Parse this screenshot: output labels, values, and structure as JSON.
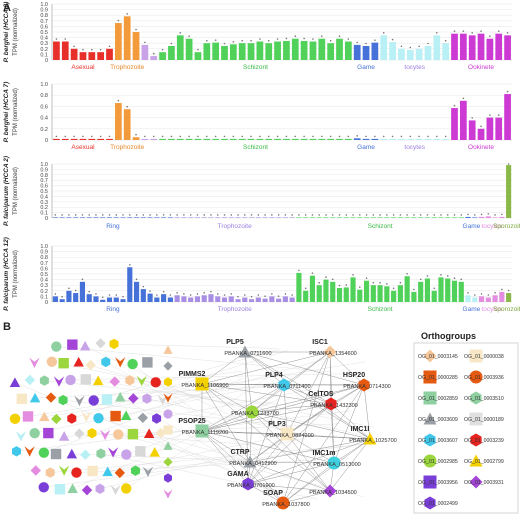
{
  "panel_labels": [
    "A",
    "B"
  ],
  "chart_data": [
    {
      "type": "bar",
      "title": "",
      "ylabel_line1": "P. berghei (HCCA 2)",
      "ylabel_line2": "TPM (normalized)",
      "ylim": [
        0,
        1.0
      ],
      "yticks": [
        "0",
        "0.1",
        "0.2",
        "0.3",
        "0.4",
        "0.5",
        "0.6",
        "0.7",
        "0.8",
        "0.9",
        "1.0"
      ],
      "groups": [
        {
          "name": "Asexual",
          "color": "#e8302a",
          "values": [
            0.33,
            0.33,
            0.2,
            0.14,
            0.14,
            0.14,
            0.2
          ]
        },
        {
          "name": "Trophozoite",
          "color": "#f39a3b",
          "values": [
            0.66,
            0.78,
            0.5
          ]
        },
        {
          "name": "",
          "color": "#c9a3e8",
          "values": [
            0.27,
            0.07
          ]
        },
        {
          "name": "Schizont",
          "color": "#4fd15a",
          "values": [
            0.14,
            0.25,
            0.44,
            0.38,
            0.14,
            0.3,
            0.31,
            0.25,
            0.28,
            0.3,
            0.3,
            0.33,
            0.3,
            0.33,
            0.34,
            0.38,
            0.34,
            0.33,
            0.38,
            0.3,
            0.38,
            0.33
          ]
        },
        {
          "name": "Game",
          "color": "#4671d8",
          "values": [
            0.27,
            0.25,
            0.31
          ]
        },
        {
          "name": "tocytes",
          "color": "#b8f0f5",
          "values": [
            0.44,
            0.32,
            0.2,
            0.18,
            0.2,
            0.25,
            0.44,
            0.3
          ]
        },
        {
          "name": "Ookinete",
          "color": "#cc3ad3",
          "values": [
            0.47,
            0.47,
            0.44,
            0.47,
            0.38,
            0.47,
            0.44
          ]
        }
      ],
      "x_group_labels": [
        {
          "text": "Asexual",
          "color": "#e8302a"
        },
        {
          "text": "Trophozoite",
          "color": "#e68a2e"
        },
        {
          "text": "Schizont",
          "color": "#38b944"
        },
        {
          "text": "Game",
          "color": "#4671d8"
        },
        {
          "text": "tocytes",
          "color": "#9b7fe0"
        },
        {
          "text": "Ookinete",
          "color": "#cc3ad3"
        }
      ]
    },
    {
      "type": "bar",
      "title": "",
      "ylabel_line1": "P. berghei (HCCA 7)",
      "ylabel_line2": "TPM (normalized)",
      "ylim": [
        0,
        1.0
      ],
      "yticks": [
        "0",
        "0.2",
        "0.4",
        "0.6",
        "0.8",
        "1.0"
      ],
      "groups": [
        {
          "name": "Asexual",
          "color": "#e8302a",
          "values": [
            0.02,
            0.02,
            0.02,
            0.02,
            0.02,
            0.02,
            0.02
          ]
        },
        {
          "name": "Trophozoite",
          "color": "#f39a3b",
          "values": [
            0.66,
            0.55,
            0.05
          ]
        },
        {
          "name": "",
          "color": "#c9a3e8",
          "values": [
            0.02,
            0.02
          ]
        },
        {
          "name": "Schizont",
          "color": "#4fd15a",
          "values": [
            0.02,
            0.02,
            0.02,
            0.02,
            0.02,
            0.02,
            0.02,
            0.02,
            0.02,
            0.02,
            0.02,
            0.02,
            0.02,
            0.02,
            0.02,
            0.02,
            0.02,
            0.02,
            0.02,
            0.02,
            0.02,
            0.02
          ]
        },
        {
          "name": "Game",
          "color": "#4671d8",
          "values": [
            0.03,
            0.02,
            0.02
          ]
        },
        {
          "name": "tocytes",
          "color": "#b8f0f5",
          "values": [
            0.02,
            0.02,
            0.02,
            0.02,
            0.02,
            0.02,
            0.02,
            0.02
          ]
        },
        {
          "name": "Ookinete",
          "color": "#cc3ad3",
          "values": [
            0.57,
            0.7,
            0.35,
            0.2,
            0.4,
            0.4,
            0.82
          ]
        }
      ],
      "x_group_labels": [
        {
          "text": "Asexual",
          "color": "#e8302a"
        },
        {
          "text": "Trophozoite",
          "color": "#e68a2e"
        },
        {
          "text": "Schizont",
          "color": "#38b944"
        },
        {
          "text": "Game",
          "color": "#4671d8"
        },
        {
          "text": "tocytes",
          "color": "#9b7fe0"
        },
        {
          "text": "Ookinete",
          "color": "#cc3ad3"
        }
      ]
    },
    {
      "type": "bar",
      "title": "",
      "ylabel_line1": "P. falciparum (HCCA 2)",
      "ylabel_line2": "TPM (normalized)",
      "ylim": [
        0,
        1.0
      ],
      "yticks": [
        "0",
        "0.1",
        "0.2",
        "0.3",
        "0.4",
        "0.5",
        "0.6",
        "0.7",
        "0.8",
        "0.9",
        "1.0"
      ],
      "groups": [
        {
          "name": "Ring",
          "color": "#4671d8",
          "values": [
            0.01,
            0.01,
            0.01,
            0.01,
            0.01,
            0.01,
            0.01,
            0.01,
            0.01,
            0.01,
            0.01,
            0.01,
            0.01,
            0.01,
            0.01,
            0.01,
            0.01,
            0.01
          ]
        },
        {
          "name": "Trophozoite",
          "color": "#a98fe3",
          "values": [
            0.01,
            0.01,
            0.01,
            0.01,
            0.01,
            0.01,
            0.01,
            0.01,
            0.01,
            0.01,
            0.01,
            0.01,
            0.01,
            0.01,
            0.01,
            0.01,
            0.01,
            0.01
          ]
        },
        {
          "name": "Schizont",
          "color": "#4fd15a",
          "values": [
            0.01,
            0.01,
            0.01,
            0.01,
            0.01,
            0.01,
            0.01,
            0.01,
            0.01,
            0.01,
            0.01,
            0.01,
            0.01,
            0.01,
            0.01,
            0.01,
            0.01,
            0.01,
            0.01,
            0.01,
            0.01,
            0.01,
            0.01,
            0.01,
            0.01
          ]
        },
        {
          "name": "Game",
          "color": "#4671d8",
          "values": [
            0.02,
            0.01
          ]
        },
        {
          "name": "tocytes",
          "color": "#e48ce0",
          "values": [
            0.02,
            0.03,
            0.01,
            0.02
          ]
        },
        {
          "name": "Sporozoite",
          "color": "#8ab94a",
          "values": [
            0.98
          ]
        }
      ],
      "x_group_labels": [
        {
          "text": "Ring",
          "color": "#4671d8"
        },
        {
          "text": "Trophozoite",
          "color": "#9b7fe0"
        },
        {
          "text": "Schizont",
          "color": "#38b944"
        },
        {
          "text": "Game",
          "color": "#4671d8"
        },
        {
          "text": "tocytes",
          "color": "#e48ce0"
        },
        {
          "text": "Sporozoite",
          "color": "#7da83c"
        }
      ]
    },
    {
      "type": "bar",
      "title": "",
      "ylabel_line1": "P. falciparum (HCCA 12)",
      "ylabel_line2": "TPM (normalized)",
      "ylim": [
        0,
        1.0
      ],
      "yticks": [
        "0",
        "0.1",
        "0.2",
        "0.3",
        "0.4",
        "0.5",
        "0.6",
        "0.7",
        "0.8",
        "0.9",
        "1.0"
      ],
      "groups": [
        {
          "name": "Ring",
          "color": "#4671d8",
          "values": [
            0.1,
            0.05,
            0.2,
            0.16,
            0.36,
            0.14,
            0.1,
            0.04,
            0.08,
            0.08,
            0.05,
            0.62,
            0.36,
            0.23,
            0.15,
            0.08,
            0.14,
            0.08
          ]
        },
        {
          "name": "Trophozoite",
          "color": "#a98fe3",
          "values": [
            0.12,
            0.1,
            0.08,
            0.1,
            0.12,
            0.14,
            0.1,
            0.08,
            0.1,
            0.05,
            0.08,
            0.05,
            0.08,
            0.06,
            0.1,
            0.06,
            0.1,
            0.08
          ]
        },
        {
          "name": "Schizont",
          "color": "#4fd15a",
          "values": [
            0.52,
            0.2,
            0.47,
            0.3,
            0.4,
            0.36,
            0.25,
            0.26,
            0.44,
            0.22,
            0.38,
            0.3,
            0.3,
            0.28,
            0.2,
            0.3,
            0.46,
            0.18,
            0.36,
            0.42,
            0.2,
            0.44,
            0.42,
            0.38,
            0.36
          ]
        },
        {
          "name": "Game",
          "color": "#b8f0f5",
          "values": [
            0.12,
            0.08
          ]
        },
        {
          "name": "tocytes",
          "color": "#e48ce0",
          "values": [
            0.1,
            0.08,
            0.12,
            0.18
          ]
        },
        {
          "name": "Sporozoite",
          "color": "#8ab94a",
          "values": [
            0.16
          ]
        }
      ],
      "x_group_labels": [
        {
          "text": "Ring",
          "color": "#4671d8"
        },
        {
          "text": "Trophozoite",
          "color": "#9b7fe0"
        },
        {
          "text": "Schizont",
          "color": "#38b944"
        },
        {
          "text": "Game",
          "color": "#4671d8"
        },
        {
          "text": "tocytes",
          "color": "#e48ce0"
        },
        {
          "text": "Sporozoite",
          "color": "#7da83c"
        }
      ]
    }
  ],
  "network": {
    "highlight_nodes": [
      {
        "name": "PLP5",
        "id": "PBANKA_0711600",
        "color": "#9aa0a6",
        "shape": "triangle"
      },
      {
        "name": "ISC1",
        "id": "PBANKA_1354600",
        "color": "#f6c79a",
        "shape": "diamond"
      },
      {
        "name": "PIMMS2",
        "id": "PBANKA_1106900",
        "color": "#f3d000",
        "shape": "square"
      },
      {
        "name": "PLP4",
        "id": "PBANKA_0711400",
        "color": "#40c8ea",
        "shape": "hexagon"
      },
      {
        "name": "HSP20",
        "id": "PBANKA_0714300",
        "color": "#e55a10",
        "shape": "hexagon"
      },
      {
        "name": "",
        "id": "PBANKA_1233700",
        "color": "#9bd63d",
        "shape": "circle"
      },
      {
        "name": "CelTOS",
        "id": "PBANKA_1432300",
        "color": "#e52420",
        "shape": "hexagon"
      },
      {
        "name": "PSOP25",
        "id": "PBANKA_1119200",
        "color": "#8fd0a0",
        "shape": "square"
      },
      {
        "name": "PLP3",
        "id": "PBANKA_0824200",
        "color": "#f8e7c4",
        "shape": "square"
      },
      {
        "name": "IMC1I",
        "id": "PBANKA_1025700",
        "color": "#f3d000",
        "shape": "triangle"
      },
      {
        "name": "CTRP",
        "id": "PBANKA_0412900",
        "color": "#9aa0a6",
        "shape": "triangle"
      },
      {
        "name": "IMC1m",
        "id": "PBANKA_0513000",
        "color": "#3fd0e0",
        "shape": "circle"
      },
      {
        "name": "GAMA",
        "id": "PBANKA_0701900",
        "color": "#7a3ed8",
        "shape": "hexagon"
      },
      {
        "name": "",
        "id": "PBANKA_1034500",
        "color": "#a445d8",
        "shape": "diamond"
      },
      {
        "name": "SOAP",
        "id": "PBANKA_1037800",
        "color": "#e55a10",
        "shape": "circle"
      }
    ]
  },
  "orthogroups": {
    "title": "Orthogroups",
    "items": [
      {
        "label": "OG_01_0003145",
        "color": "#f6c79a",
        "shape": "diamond"
      },
      {
        "label": "OG_01_0000038",
        "color": "#f8e7c4",
        "shape": "square"
      },
      {
        "label": "OG_01_0000285",
        "color": "#e55a10",
        "shape": "square"
      },
      {
        "label": "OG_01_0003936",
        "color": "#e55a10",
        "shape": "circle"
      },
      {
        "label": "OG_01_0002859",
        "color": "#8fd0a0",
        "shape": "square"
      },
      {
        "label": "OG_01_0003510",
        "color": "#8fd0a0",
        "shape": "hexagon"
      },
      {
        "label": "OG_01_0003609",
        "color": "#9aa0a6",
        "shape": "triangle"
      },
      {
        "label": "OG_01_0000189",
        "color": "#e0e0e0",
        "shape": "square"
      },
      {
        "label": "OG_01_0003607",
        "color": "#40c8ea",
        "shape": "hexagon"
      },
      {
        "label": "OG_01_0003239",
        "color": "#e52420",
        "shape": "hexagon"
      },
      {
        "label": "OG_01_0002985",
        "color": "#9bd63d",
        "shape": "circle"
      },
      {
        "label": "OG_01_0002799",
        "color": "#f3d000",
        "shape": "triangle"
      },
      {
        "label": "OG_01_0003956",
        "color": "#7a3ed8",
        "shape": "square"
      },
      {
        "label": "OG_01_0003931",
        "color": "#a445d8",
        "shape": "diamond"
      },
      {
        "label": "OG_01_0002499",
        "color": "#7a3ed8",
        "shape": "hexagon"
      }
    ]
  }
}
